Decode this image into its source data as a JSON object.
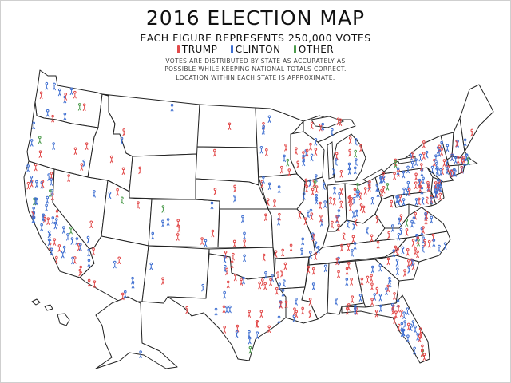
{
  "title": "2016 ELECTION MAP",
  "subtitle": "EACH FIGURE REPRESENTS 250,000 VOTES",
  "legend": [
    {
      "label": "TRUMP",
      "color": "#e24a4a"
    },
    {
      "label": "CLINTON",
      "color": "#3f6fd1"
    },
    {
      "label": "OTHER",
      "color": "#4a9a4a"
    }
  ],
  "notes": {
    "line1": "VOTES ARE DISTRIBUTED BY STATE AS ACCURATELY AS",
    "line2": "POSSIBLE WHILE KEEPING NATIONAL TOTALS CORRECT.",
    "line3": "LOCATION WITHIN EACH STATE IS APPROXIMATE."
  },
  "colors": {
    "trump": "#e24a4a",
    "clinton": "#3f6fd1",
    "other": "#4a9a4a"
  },
  "figures_per_state": {
    "WA": {
      "trump": 5,
      "clinton": 7,
      "other": 1
    },
    "OR": {
      "trump": 4,
      "clinton": 4,
      "other": 1
    },
    "CA": {
      "trump": 18,
      "clinton": 35,
      "other": 3
    },
    "NV": {
      "trump": 2,
      "clinton": 2,
      "other": 0
    },
    "ID": {
      "trump": 2,
      "clinton": 1,
      "other": 0
    },
    "MT": {
      "trump": 1,
      "clinton": 1,
      "other": 0
    },
    "WY": {
      "trump": 1,
      "clinton": 0,
      "other": 0
    },
    "UT": {
      "trump": 2,
      "clinton": 1,
      "other": 1
    },
    "AZ": {
      "trump": 5,
      "clinton": 4,
      "other": 0
    },
    "CO": {
      "trump": 5,
      "clinton": 5,
      "other": 1
    },
    "NM": {
      "trump": 1,
      "clinton": 2,
      "other": 0
    },
    "ND": {
      "trump": 1,
      "clinton": 0,
      "other": 0
    },
    "SD": {
      "trump": 1,
      "clinton": 0,
      "other": 0
    },
    "NE": {
      "trump": 2,
      "clinton": 1,
      "other": 0
    },
    "KS": {
      "trump": 3,
      "clinton": 2,
      "other": 0
    },
    "OK": {
      "trump": 4,
      "clinton": 2,
      "other": 0
    },
    "TX": {
      "trump": 19,
      "clinton": 15,
      "other": 1
    },
    "MN": {
      "trump": 5,
      "clinton": 5,
      "other": 1
    },
    "IA": {
      "trump": 3,
      "clinton": 3,
      "other": 0
    },
    "MO": {
      "trump": 6,
      "clinton": 4,
      "other": 0
    },
    "AR": {
      "trump": 3,
      "clinton": 1,
      "other": 0
    },
    "LA": {
      "trump": 5,
      "clinton": 3,
      "other": 0
    },
    "WI": {
      "trump": 6,
      "clinton": 6,
      "other": 0
    },
    "IL": {
      "trump": 9,
      "clinton": 12,
      "other": 1
    },
    "MI": {
      "trump": 9,
      "clinton": 9,
      "other": 1
    },
    "IN": {
      "trump": 7,
      "clinton": 4,
      "other": 0
    },
    "OH": {
      "trump": 11,
      "clinton": 9,
      "other": 1
    },
    "KY": {
      "trump": 5,
      "clinton": 3,
      "other": 0
    },
    "TN": {
      "trump": 6,
      "clinton": 3,
      "other": 0
    },
    "MS": {
      "trump": 3,
      "clinton": 2,
      "other": 0
    },
    "AL": {
      "trump": 5,
      "clinton": 3,
      "other": 0
    },
    "GA": {
      "trump": 8,
      "clinton": 7,
      "other": 0
    },
    "FL": {
      "trump": 18,
      "clinton": 18,
      "other": 1
    },
    "SC": {
      "trump": 5,
      "clinton": 4,
      "other": 0
    },
    "NC": {
      "trump": 9,
      "clinton": 9,
      "other": 1
    },
    "VA": {
      "trump": 7,
      "clinton": 8,
      "other": 1
    },
    "WV": {
      "trump": 2,
      "clinton": 1,
      "other": 0
    },
    "PA": {
      "trump": 12,
      "clinton": 12,
      "other": 1
    },
    "NY": {
      "trump": 11,
      "clinton": 18,
      "other": 1
    },
    "VT": {
      "trump": 0,
      "clinton": 1,
      "other": 0
    },
    "NH": {
      "trump": 1,
      "clinton": 1,
      "other": 0
    },
    "ME": {
      "trump": 1,
      "clinton": 1,
      "other": 0
    },
    "MA": {
      "trump": 4,
      "clinton": 8,
      "other": 1
    },
    "CT": {
      "trump": 2,
      "clinton": 3,
      "other": 0
    },
    "RI": {
      "trump": 1,
      "clinton": 1,
      "other": 0
    },
    "NJ": {
      "trump": 6,
      "clinton": 9,
      "other": 0
    },
    "DE": {
      "trump": 1,
      "clinton": 1,
      "other": 0
    },
    "MD": {
      "trump": 3,
      "clinton": 6,
      "other": 0
    },
    "AK": {
      "trump": 0,
      "clinton": 1,
      "other": 0
    },
    "HI": {
      "trump": 0,
      "clinton": 0,
      "other": 0
    }
  }
}
